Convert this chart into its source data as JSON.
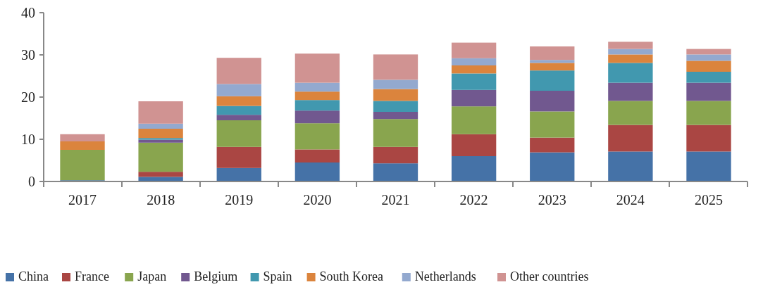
{
  "chart_data": {
    "type": "bar",
    "stacked": true,
    "categories": [
      "2017",
      "2018",
      "2019",
      "2020",
      "2021",
      "2022",
      "2023",
      "2024",
      "2025"
    ],
    "ylim": [
      0,
      40
    ],
    "yticks": [
      0,
      10,
      20,
      30,
      40
    ],
    "grid": false,
    "legend": "bottom",
    "series": [
      {
        "name": "China",
        "color": "#4572a7",
        "values": [
          0.3,
          1.1,
          3.2,
          4.5,
          4.3,
          6.0,
          6.9,
          7.1,
          7.1
        ]
      },
      {
        "name": "France",
        "color": "#aa4643",
        "values": [
          0,
          1.2,
          5.0,
          3.1,
          3.9,
          5.2,
          3.5,
          6.3,
          6.3
        ]
      },
      {
        "name": "Japan",
        "color": "#89a54e",
        "values": [
          7.2,
          6.9,
          6.3,
          6.2,
          6.6,
          6.6,
          6.2,
          5.7,
          5.7
        ]
      },
      {
        "name": "Belgium",
        "color": "#71588f",
        "values": [
          0,
          0.7,
          1.3,
          3.0,
          1.7,
          3.9,
          4.9,
          4.3,
          4.3
        ]
      },
      {
        "name": "Spain",
        "color": "#4198af",
        "values": [
          0,
          0.4,
          2.1,
          2.5,
          2.6,
          3.9,
          4.8,
          4.7,
          2.6
        ]
      },
      {
        "name": "South Korea",
        "color": "#db843d",
        "values": [
          2.0,
          2.2,
          2.3,
          2.0,
          2.8,
          1.9,
          1.8,
          2.0,
          2.6
        ]
      },
      {
        "name": "Netherlands",
        "color": "#93a9cf",
        "values": [
          0,
          1.2,
          2.9,
          2.1,
          2.2,
          1.7,
          0.7,
          1.3,
          1.5
        ]
      },
      {
        "name": "Other countries",
        "color": "#d09392",
        "values": [
          1.7,
          5.3,
          6.2,
          6.9,
          6.0,
          3.7,
          3.2,
          1.7,
          1.3
        ]
      }
    ]
  }
}
